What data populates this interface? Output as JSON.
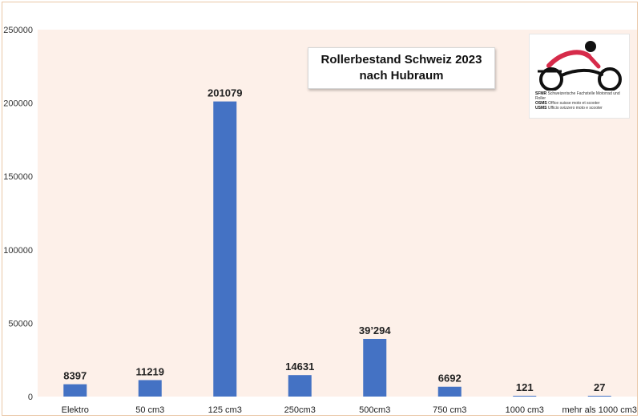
{
  "chart_data": {
    "type": "bar",
    "title_lines": [
      "Rollerbestand Schweiz 2023",
      "nach Hubraum"
    ],
    "categories": [
      "Elektro",
      "50 cm3",
      "125 cm3",
      "250cm3",
      "500cm3",
      "750 cm3",
      "1000 cm3",
      "mehr als 1000 cm3"
    ],
    "values": [
      8397,
      11219,
      201079,
      14631,
      39294,
      6692,
      121,
      27
    ],
    "value_labels": [
      "8397",
      "11219",
      "201079",
      "14631",
      "39’294",
      "6692",
      "121",
      "27"
    ],
    "y_ticks": [
      0,
      50000,
      100000,
      150000,
      200000,
      250000
    ],
    "ylim": [
      0,
      250000
    ],
    "grid": false,
    "bar_color": "#4472c4",
    "plot_background": "#fdf0e9"
  },
  "logo": {
    "abbr_de": "SFMR",
    "name_de": "Schweizerische Fachstelle Motorrad und Roller",
    "abbr_fr": "OSMS",
    "name_fr": "Office suisse moto et scooter",
    "abbr_it": "USMS",
    "name_it": "Ufficio svizzero moto e scooter",
    "accent_color": "#d62b4a"
  }
}
